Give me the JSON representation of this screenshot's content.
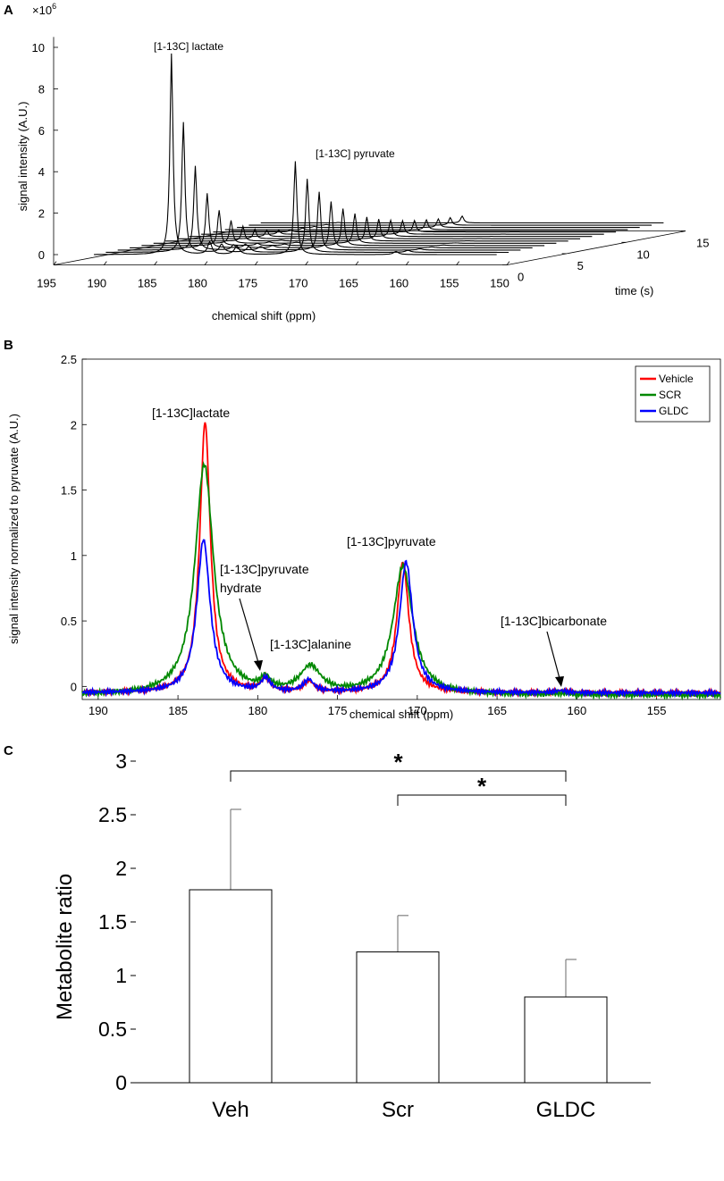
{
  "panels": {
    "A": {
      "label": "A",
      "exponent": "×10",
      "exponent_power": "6",
      "chart_data": {
        "type": "line",
        "title": "",
        "ylabel": "signal intensity (A.U.)",
        "xlabel": "chemical shift (ppm)",
        "zlabel": "time (s)",
        "x_ticks": [
          "195",
          "190",
          "185",
          "180",
          "175",
          "170",
          "165",
          "160",
          "155",
          "150"
        ],
        "y_ticks": [
          "0",
          "2",
          "4",
          "6",
          "8",
          "10"
        ],
        "z_ticks": [
          "0",
          "5",
          "10",
          "15"
        ],
        "xlim": [
          150,
          195
        ],
        "ylim": [
          0,
          10.5
        ],
        "zlim": [
          0,
          15
        ],
        "n_traces": 15,
        "lactate_peak_ppm": 183.3,
        "pyruvate_peak_ppm": 171,
        "first_trace_peaks": {
          "lactate": 9.7,
          "pyruvate": 4.3
        },
        "annotations": [
          "[1-13C] lactate",
          "[1-13C] pyruvate"
        ]
      }
    },
    "B": {
      "label": "B",
      "chart_data": {
        "type": "line",
        "title": "",
        "xlabel": "chemical shift (ppm)",
        "ylabel": "signal intensity normalized to pyruvate (A.U.)",
        "xlim": [
          191,
          151
        ],
        "ylim": [
          -0.1,
          2.5
        ],
        "x_ticks": [
          "190",
          "185",
          "180",
          "175",
          "170",
          "165",
          "160",
          "155"
        ],
        "y_ticks": [
          "0",
          "0.5",
          "1",
          "1.5",
          "2",
          "2.5"
        ],
        "legend": [
          "Vehicle",
          "SCR",
          "GLDC"
        ],
        "legend_position": "top-right",
        "colors": {
          "Vehicle": "#ff0000",
          "SCR": "#008800",
          "GLDC": "#0000ff"
        },
        "series": [
          {
            "name": "Vehicle",
            "baseline": -0.05,
            "peaks": [
              {
                "ppm": 183.3,
                "height": 2.07,
                "width": 0.4
              },
              {
                "ppm": 179.5,
                "height": 0.1,
                "width": 0.35
              },
              {
                "ppm": 176.8,
                "height": 0.08,
                "width": 0.4
              },
              {
                "ppm": 170.9,
                "height": 1.0,
                "width": 0.45
              },
              {
                "ppm": 161.0,
                "height": 0.015,
                "width": 0.4
              }
            ]
          },
          {
            "name": "SCR",
            "baseline": -0.07,
            "peaks": [
              {
                "ppm": 183.35,
                "height": 1.76,
                "width": 0.7
              },
              {
                "ppm": 179.5,
                "height": 0.09,
                "width": 0.35
              },
              {
                "ppm": 176.7,
                "height": 0.2,
                "width": 0.8
              },
              {
                "ppm": 170.9,
                "height": 0.98,
                "width": 0.75
              },
              {
                "ppm": 161.0,
                "height": 0.01,
                "width": 0.4
              }
            ]
          },
          {
            "name": "GLDC",
            "baseline": -0.05,
            "peaks": [
              {
                "ppm": 183.4,
                "height": 1.17,
                "width": 0.5
              },
              {
                "ppm": 179.5,
                "height": 0.1,
                "width": 0.35
              },
              {
                "ppm": 176.8,
                "height": 0.09,
                "width": 0.4
              },
              {
                "ppm": 170.7,
                "height": 1.0,
                "width": 0.5
              },
              {
                "ppm": 161.0,
                "height": 0.015,
                "width": 0.4
              }
            ]
          }
        ],
        "annotations": {
          "lactate": "[1-13C]lactate",
          "pyruvate_hydrate_line1": "[1-13C]pyruvate",
          "pyruvate_hydrate_line2": "hydrate",
          "alanine": "[1-13C]alanine",
          "pyruvate": "[1-13C]pyruvate",
          "bicarbonate": "[1-13C]bicarbonate"
        }
      }
    },
    "C": {
      "label": "C",
      "chart_data": {
        "type": "bar",
        "title": "",
        "xlabel": "",
        "ylabel": "Metabolite ratio",
        "categories": [
          "Veh",
          "Scr",
          "GLDC"
        ],
        "values": [
          1.8,
          1.22,
          0.8
        ],
        "errors": [
          0.75,
          0.34,
          0.35
        ],
        "ylim": [
          0,
          3
        ],
        "y_ticks": [
          "0",
          "0.5",
          "1",
          "1.5",
          "2",
          "2.5",
          "3"
        ],
        "significance": [
          {
            "from": "Veh",
            "to": "GLDC",
            "label": "*"
          },
          {
            "from": "Scr",
            "to": "GLDC",
            "label": "*"
          }
        ]
      }
    }
  }
}
